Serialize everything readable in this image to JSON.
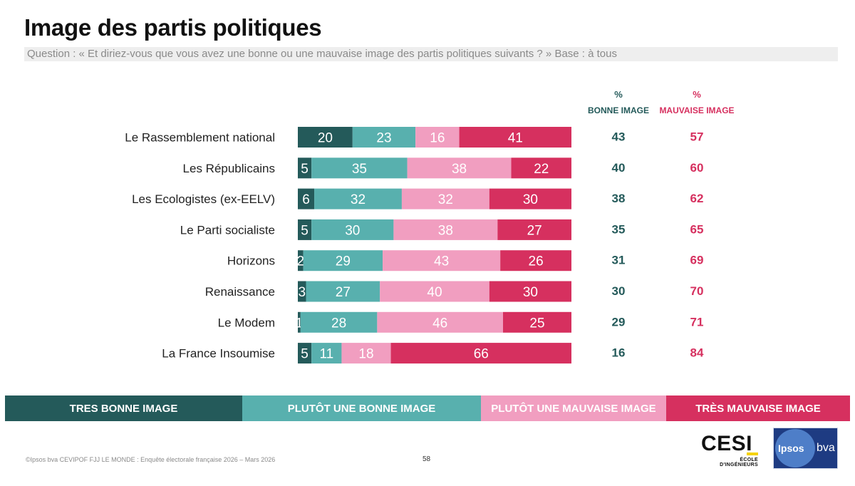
{
  "header": {
    "title": "Image des partis politiques",
    "question": "Question : « Et diriez-vous que vous avez une bonne ou une mauvaise image des partis politiques suivants ? »  Base : à tous"
  },
  "columns": {
    "good": {
      "pct": "%",
      "label": "BONNE IMAGE"
    },
    "bad": {
      "pct": "%",
      "label": "MAUVAISE IMAGE"
    }
  },
  "colors": {
    "tres_bonne": "#245a5a",
    "plutot_bonne": "#58b0ae",
    "plutot_mauvaise": "#f19ec0",
    "tres_mauvaise": "#d6305f",
    "good_text": "#245a5a",
    "bad_text": "#d6305f"
  },
  "legend": [
    {
      "label": "TRES BONNE IMAGE",
      "color": "#245a5a"
    },
    {
      "label": "PLUTÔT UNE BONNE IMAGE",
      "color": "#58b0ae"
    },
    {
      "label": "PLUTÔT UNE MAUVAISE IMAGE",
      "color": "#f19ec0"
    },
    {
      "label": "TRÈS MAUVAISE IMAGE",
      "color": "#d6305f"
    }
  ],
  "chart_data": {
    "type": "bar",
    "orientation": "horizontal",
    "stacked": true,
    "title": "Image des partis politiques",
    "xlim": [
      0,
      100
    ],
    "categories": [
      "Le Rassemblement national",
      "Les Républicains",
      "Les Ecologistes (ex-EELV)",
      "Le Parti socialiste",
      "Horizons",
      "Renaissance",
      "Le Modem",
      "La France Insoumise"
    ],
    "series": [
      {
        "name": "TRES BONNE IMAGE",
        "values": [
          20,
          5,
          6,
          5,
          2,
          3,
          1,
          5
        ]
      },
      {
        "name": "PLUTÔT UNE BONNE IMAGE",
        "values": [
          23,
          35,
          32,
          30,
          29,
          27,
          28,
          11
        ]
      },
      {
        "name": "PLUTÔT UNE MAUVAISE IMAGE",
        "values": [
          16,
          38,
          32,
          38,
          43,
          40,
          46,
          18
        ]
      },
      {
        "name": "TRÈS MAUVAISE IMAGE",
        "values": [
          41,
          22,
          30,
          27,
          26,
          30,
          25,
          66
        ]
      }
    ],
    "totals_bonne": [
      43,
      40,
      38,
      35,
      31,
      30,
      29,
      16
    ],
    "totals_mauvaise": [
      57,
      60,
      62,
      65,
      69,
      70,
      71,
      84
    ]
  },
  "footer": {
    "source": "©Ipsos bva  CEVIPOF FJJ LE MONDE : Enquête électorale française 2026 – Mars 2026",
    "page": "58"
  },
  "logos": {
    "cesi": "CESI",
    "cesi_sub": "ÉCOLE D'INGÉNIEURS",
    "ipsos": "Ipsos",
    "bva": "bva"
  }
}
